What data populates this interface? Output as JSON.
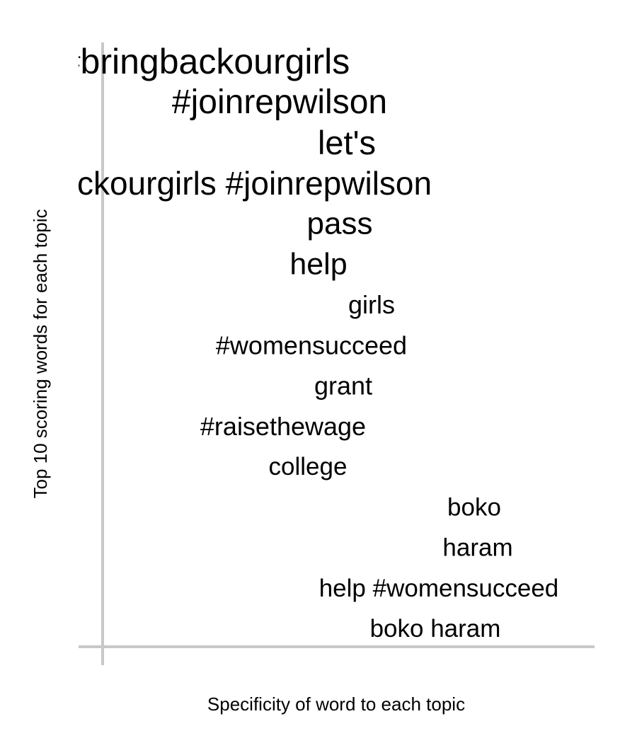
{
  "chart_data": {
    "type": "scatter",
    "title": "",
    "xlabel": "Specificity of word to each topic",
    "ylabel": "Top 10 scoring words for each topic",
    "grid": false,
    "axis_color": "#c8c8c8",
    "text_color": "#000000",
    "note": "Word-score plot: each label is drawn at its specificity score (x) and its rank (y, 1 = top); larger font = higher score.",
    "words": [
      {
        "word": "#bringbackourgirls",
        "x": 0.34,
        "y": 1,
        "weight": 1.0
      },
      {
        "word": "#joinrepwilson",
        "x": 0.55,
        "y": 2,
        "weight": 0.95
      },
      {
        "word": "let's",
        "x": 0.74,
        "y": 3,
        "weight": 0.9
      },
      {
        "word": "#bringbackourgirls #joinrepwilson",
        "x": 0.3,
        "y": 4,
        "weight": 0.86
      },
      {
        "word": "pass",
        "x": 0.72,
        "y": 5,
        "weight": 0.82
      },
      {
        "word": "help",
        "x": 0.66,
        "y": 6,
        "weight": 0.78
      },
      {
        "word": "girls",
        "x": 0.81,
        "y": 7,
        "weight": 0.56
      },
      {
        "word": "#womensucceed",
        "x": 0.64,
        "y": 8,
        "weight": 0.56
      },
      {
        "word": "grant",
        "x": 0.73,
        "y": 9,
        "weight": 0.56
      },
      {
        "word": "#raisethewage",
        "x": 0.56,
        "y": 10,
        "weight": 0.56
      },
      {
        "word": "college",
        "x": 0.63,
        "y": 11,
        "weight": 0.53
      },
      {
        "word": "boko",
        "x": 1.1,
        "y": 12,
        "weight": 0.53
      },
      {
        "word": "haram",
        "x": 1.11,
        "y": 13,
        "weight": 0.53
      },
      {
        "word": "help #womensucceed",
        "x": 1.0,
        "y": 14,
        "weight": 0.53
      },
      {
        "word": "boko haram",
        "x": 0.99,
        "y": 15,
        "weight": 0.53
      }
    ]
  }
}
